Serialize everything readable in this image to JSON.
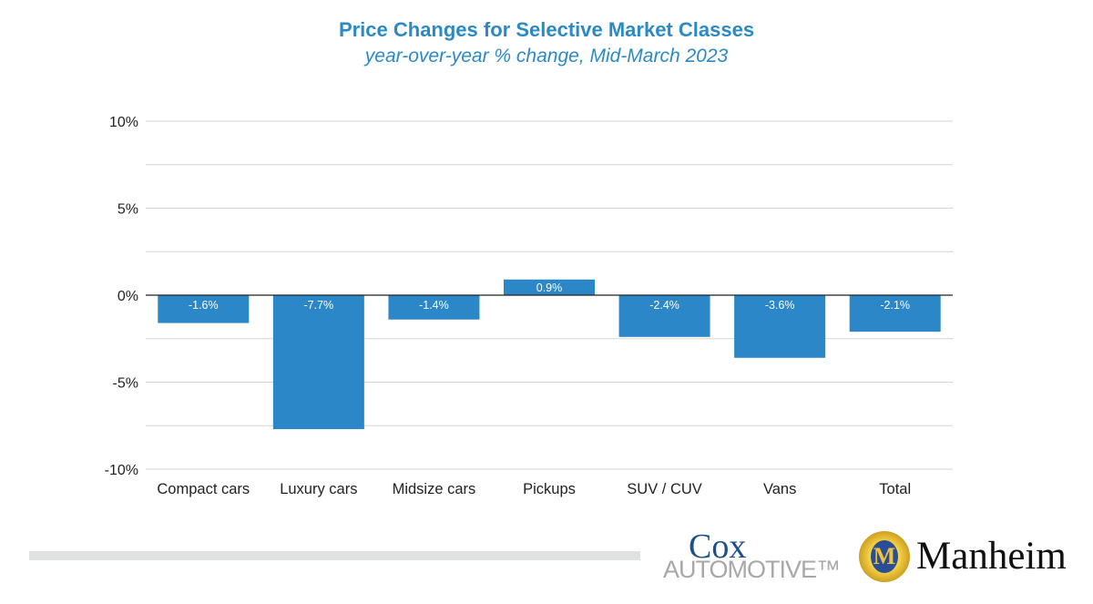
{
  "chart_data": {
    "type": "bar",
    "title": "Price Changes for Selective Market Classes",
    "subtitle": "year-over-year % change, Mid-March 2023",
    "categories": [
      "Compact cars",
      "Luxury cars",
      "Midsize cars",
      "Pickups",
      "SUV / CUV",
      "Vans",
      "Total"
    ],
    "values": [
      -1.6,
      -7.7,
      -1.4,
      0.9,
      -2.4,
      -3.6,
      -2.1
    ],
    "data_labels": [
      "-1.6%",
      "-7.7%",
      "-1.4%",
      "0.9%",
      "-2.4%",
      "-3.6%",
      "-2.1%"
    ],
    "ylim": [
      -10,
      10
    ],
    "yticks": [
      10,
      5,
      0,
      -5,
      -10
    ],
    "ytick_labels": [
      "10%",
      "5%",
      "0%",
      "-5%",
      "-10%"
    ],
    "grid": true,
    "bar_color": "#2b87c7",
    "xlabel": "",
    "ylabel": ""
  },
  "logos": {
    "cox": "Cox Automotive",
    "cox_line1": "Cox",
    "cox_line2": "AUTOMOTIVE™",
    "manheim": "Manheim"
  }
}
